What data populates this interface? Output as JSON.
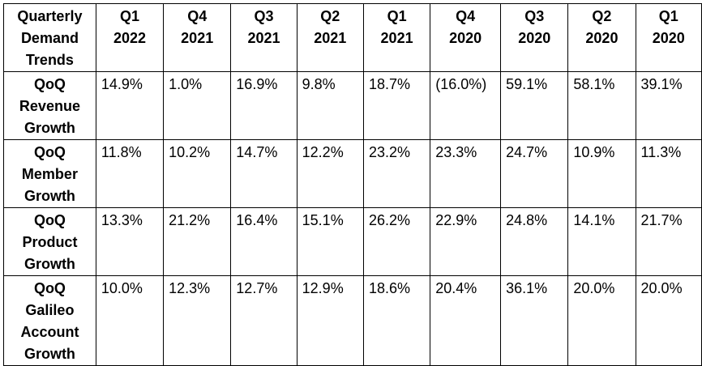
{
  "chart_data": {
    "type": "table",
    "corner_header": [
      "Quarterly",
      "Demand",
      "Trends"
    ],
    "columns": [
      [
        "Q1",
        "2022"
      ],
      [
        "Q4",
        "2021"
      ],
      [
        "Q3",
        "2021"
      ],
      [
        "Q2",
        "2021"
      ],
      [
        "Q1",
        "2021"
      ],
      [
        "Q4",
        "2020"
      ],
      [
        "Q3",
        "2020"
      ],
      [
        "Q2",
        "2020"
      ],
      [
        "Q1",
        "2020"
      ]
    ],
    "rows": [
      {
        "label": [
          "QoQ",
          "Revenue",
          "Growth"
        ],
        "values": [
          "14.9%",
          "1.0%",
          "16.9%",
          "9.8%",
          "18.7%",
          "(16.0%)",
          "59.1%",
          "58.1%",
          "39.1%"
        ]
      },
      {
        "label": [
          "QoQ",
          "Member",
          "Growth"
        ],
        "values": [
          "11.8%",
          "10.2%",
          "14.7%",
          "12.2%",
          "23.2%",
          "23.3%",
          "24.7%",
          "10.9%",
          "11.3%"
        ]
      },
      {
        "label": [
          "QoQ",
          "Product",
          "Growth"
        ],
        "values": [
          "13.3%",
          "21.2%",
          "16.4%",
          "15.1%",
          "26.2%",
          "22.9%",
          "24.8%",
          "14.1%",
          "21.7%"
        ]
      },
      {
        "label": [
          "QoQ",
          "Galileo",
          "Account",
          "Growth"
        ],
        "values": [
          "10.0%",
          "12.3%",
          "12.7%",
          "12.9%",
          "18.6%",
          "20.4%",
          "36.1%",
          "20.0%",
          "20.0%"
        ]
      }
    ]
  }
}
